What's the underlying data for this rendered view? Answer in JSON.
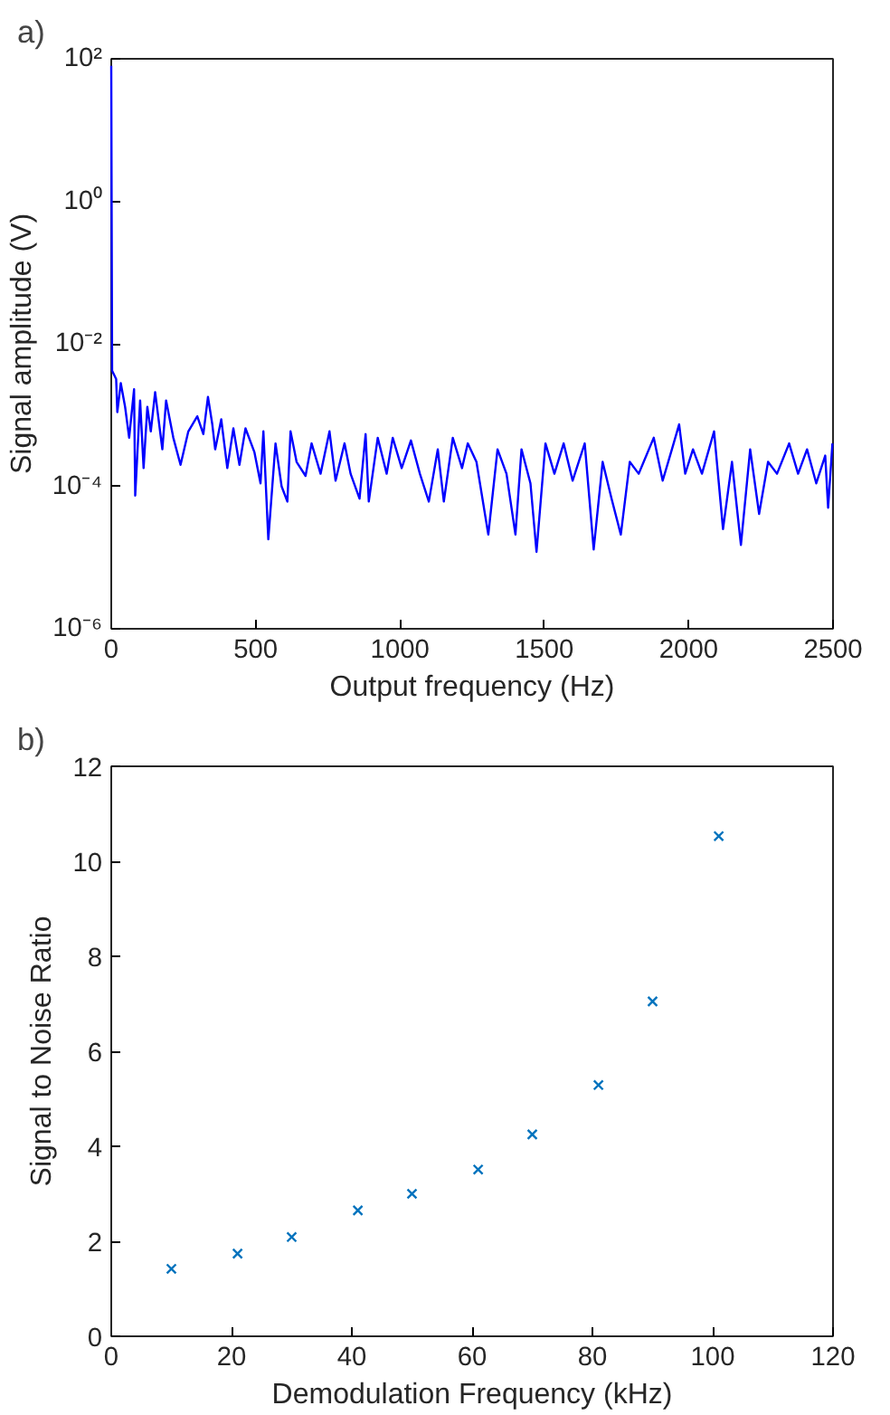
{
  "chart_data": [
    {
      "type": "line",
      "annotations": [
        "a)"
      ],
      "xlabel": "Output frequency (Hz)",
      "ylabel": "Signal amplitude (V)",
      "log": "y",
      "grid": false,
      "marker": "none",
      "line_style": "solid",
      "xlim": [
        0,
        2500
      ],
      "xticks": [
        0,
        500,
        1000,
        1500,
        2000,
        2500
      ],
      "ylim": [
        1e-06,
        100
      ],
      "yticks": [
        {
          "value": 1e-06,
          "label": "10⁻⁶"
        },
        {
          "value": 0.0001,
          "label": "10⁻⁴"
        },
        {
          "value": 0.01,
          "label": "10⁻²"
        },
        {
          "value": 1,
          "label": "10⁰"
        },
        {
          "value": 100,
          "label": "10²"
        }
      ],
      "series": [
        {
          "color": "#0000ff",
          "x": [
            0,
            3,
            17,
            21,
            33,
            48,
            62,
            79,
            83,
            100,
            112,
            125,
            137,
            152,
            177,
            190,
            215,
            240,
            267,
            298,
            319,
            335,
            350,
            360,
            381,
            402,
            423,
            444,
            465,
            496,
            517,
            527,
            544,
            569,
            590,
            610,
            621,
            642,
            673,
            694,
            725,
            756,
            777,
            808,
            829,
            860,
            881,
            892,
            923,
            954,
            975,
            1006,
            1038,
            1069,
            1100,
            1131,
            1152,
            1183,
            1215,
            1235,
            1265,
            1306,
            1338,
            1369,
            1400,
            1421,
            1452,
            1473,
            1504,
            1535,
            1567,
            1598,
            1640,
            1671,
            1702,
            1733,
            1765,
            1796,
            1827,
            1879,
            1910,
            1942,
            1967,
            1988,
            2015,
            2046,
            2088,
            2119,
            2150,
            2181,
            2213,
            2244,
            2275,
            2306,
            2348,
            2379,
            2410,
            2442,
            2473,
            2483,
            2498
          ],
          "values": [
            80,
            0.0042,
            0.0032,
            0.0011,
            0.0028,
            0.0013,
            0.00048,
            0.0023,
            7.4e-05,
            0.0016,
            0.00018,
            0.0013,
            0.00059,
            0.0021,
            0.00033,
            0.0016,
            0.00048,
            0.0002,
            0.00059,
            0.00096,
            0.00054,
            0.0018,
            0.00074,
            0.00033,
            0.00087,
            0.00018,
            0.00065,
            0.0002,
            0.00065,
            0.0003,
            0.00011,
            0.00059,
            1.8e-05,
            0.0004,
            0.0001,
            6.1e-05,
            0.00059,
            0.00022,
            0.00014,
            0.0004,
            0.00015,
            0.00059,
            0.00012,
            0.0004,
            0.00015,
            6.7e-05,
            0.00054,
            6.1e-05,
            0.00048,
            0.00015,
            0.00048,
            0.00018,
            0.00044,
            0.00015,
            6.1e-05,
            0.00033,
            6.1e-05,
            0.00048,
            0.00018,
            0.0004,
            0.00022,
            2.1e-05,
            0.00033,
            0.00015,
            2.1e-05,
            0.00033,
            0.00011,
            1.2e-05,
            0.0004,
            0.00015,
            0.0004,
            0.00012,
            0.0004,
            1.3e-05,
            0.00022,
            6.7e-05,
            2.1e-05,
            0.00022,
            0.00015,
            0.00048,
            0.00012,
            0.00033,
            0.00074,
            0.00015,
            0.00033,
            0.00015,
            0.00059,
            2.5e-05,
            0.00022,
            1.5e-05,
            0.00033,
            4.1e-05,
            0.00022,
            0.00015,
            0.0004,
            0.00015,
            0.00033,
            0.00011,
            0.00027,
            5e-05,
            0.0004
          ]
        }
      ]
    },
    {
      "type": "scatter",
      "annotations": [
        "b)"
      ],
      "xlabel": "Demodulation Frequency (kHz)",
      "ylabel": "Signal to Noise Ratio",
      "grid": false,
      "marker": "cross",
      "xlim": [
        0,
        120
      ],
      "xticks": [
        0,
        20,
        40,
        60,
        80,
        100,
        120
      ],
      "ylim": [
        0,
        12
      ],
      "yticks": [
        0,
        2,
        4,
        6,
        8,
        10,
        12
      ],
      "series": [
        {
          "color": "#0072bd",
          "x": [
            10,
            21,
            30,
            41,
            50,
            61,
            70,
            81,
            90,
            101
          ],
          "values": [
            1.42,
            1.74,
            2.09,
            2.65,
            3.0,
            3.51,
            4.25,
            5.29,
            7.05,
            10.53
          ]
        }
      ]
    }
  ]
}
